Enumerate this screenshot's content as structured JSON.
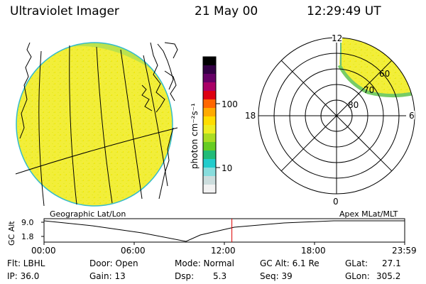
{
  "header": {
    "instrument": "Ultraviolet Imager",
    "date": "21 May 00",
    "time": "12:29:49 UT"
  },
  "colorbar": {
    "label": "photon cm⁻²s⁻¹",
    "ticks": [
      "100",
      "10"
    ],
    "colors": [
      "#000000",
      "#330044",
      "#660066",
      "#aa0066",
      "#dd0011",
      "#ff6600",
      "#ffaa00",
      "#ffdd00",
      "#eeee22",
      "#aadd22",
      "#66cc22",
      "#22bb77",
      "#22cccc",
      "#88dddd",
      "#ccdddd",
      "#f2f2f2"
    ]
  },
  "left_map": {
    "caption": "Geographic Lat/Lon",
    "glow_color": "#f2ee3a"
  },
  "polar_plot": {
    "caption": "Apex MLat/MLT",
    "mlt_labels": [
      "12",
      "18",
      "6",
      "0"
    ],
    "lat_labels": [
      "60",
      "70",
      "80"
    ]
  },
  "altitude_plot": {
    "ylabel": "GC Alt",
    "yticks": [
      "9.0",
      "1.8"
    ],
    "xticks": [
      "00:00",
      "06:00",
      "12:00",
      "18:00",
      "23:59"
    ],
    "current_time_marker_hours": 12.5,
    "marker_color": "#dd0000"
  },
  "status": {
    "filter": "Flt: LBHL",
    "ip": "IP: 36.0",
    "door": "Door: Open",
    "gain": "Gain: 13",
    "mode": "Mode: Normal",
    "dsp_label": "Dsp:",
    "dsp_value": "5.3",
    "gc_alt": "GC Alt: 6.1 Re",
    "seq": "Seq: 39",
    "glat_label": "GLat:",
    "glat_value": "27.1",
    "glon_label": "GLon:",
    "glon_value": "305.2"
  }
}
